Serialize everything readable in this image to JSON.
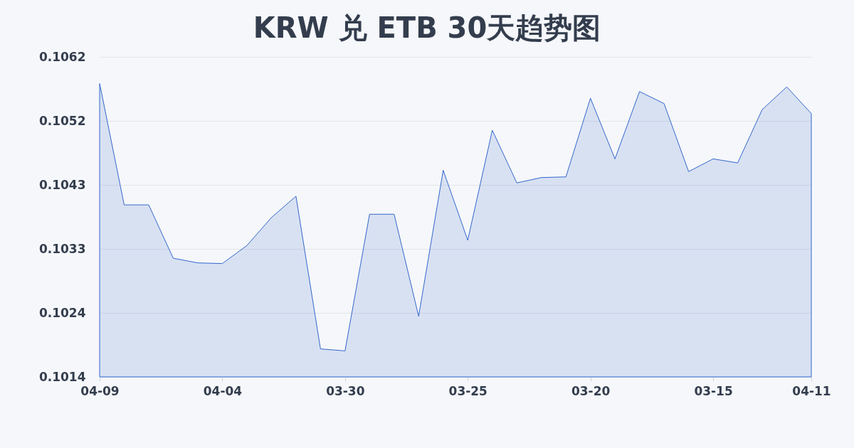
{
  "chart_data": {
    "type": "area",
    "title": "KRW 兑 ETB 30天趋势图",
    "categories": [
      "04-09",
      null,
      null,
      null,
      null,
      "04-04",
      null,
      null,
      null,
      null,
      "03-30",
      null,
      null,
      null,
      null,
      "03-25",
      null,
      null,
      null,
      null,
      "03-20",
      null,
      null,
      null,
      null,
      "03-15",
      null,
      null,
      null,
      "04-11"
    ],
    "series": [
      {
        "color": "#3366cc",
        "values": [
          0.1058,
          0.10398,
          0.10398,
          0.10318,
          0.10311,
          0.1031,
          0.10337,
          0.10379,
          0.10411,
          0.10182,
          0.10179,
          0.10384,
          0.10384,
          0.10231,
          0.1045,
          0.10345,
          0.1051,
          0.10431,
          0.10439,
          0.1044,
          0.10558,
          0.10467,
          0.10568,
          0.1055,
          0.10448,
          0.10467,
          0.10461,
          0.10541,
          0.10575,
          0.10535
        ]
      }
    ],
    "ylim": [
      0.1014,
      0.1062
    ],
    "yticks": [
      0.1014,
      {
        "value": 0.10236,
        "label": "0.1024"
      },
      {
        "value": 0.10332,
        "label": "0.1033"
      },
      {
        "value": 0.10428,
        "label": "0.1043"
      },
      {
        "value": 0.10524,
        "label": "0.1052"
      },
      0.1062
    ],
    "grid": "y"
  }
}
